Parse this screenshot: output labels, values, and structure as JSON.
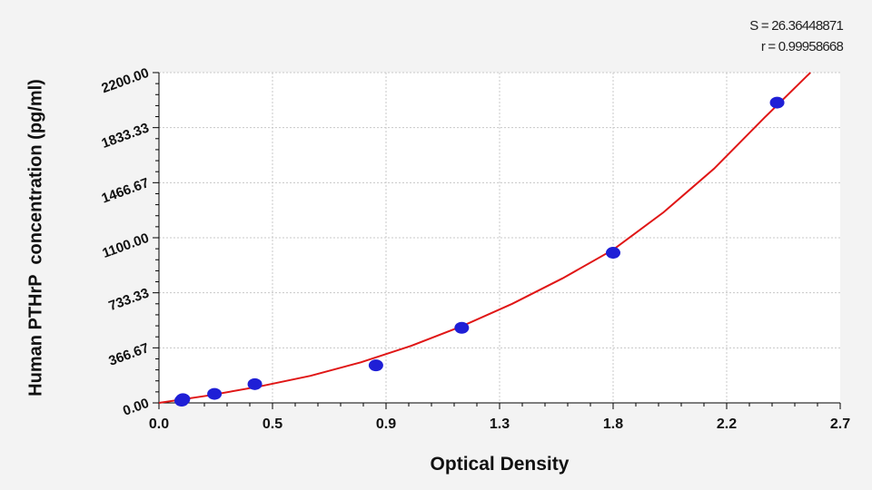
{
  "stats": {
    "s_text": "S = 26.36448871",
    "r_text": "r = 0.99958668"
  },
  "chart_data": {
    "type": "scatter",
    "xlabel": "Optical Density",
    "ylabel": "Human PTHrP  concentration (pg/ml)",
    "xlim": [
      0,
      2.7
    ],
    "ylim": [
      0,
      2200
    ],
    "x_ticks": [
      "0.0",
      "0.5",
      "0.9",
      "1.3",
      "1.8",
      "2.2",
      "2.7"
    ],
    "y_ticks": [
      "0.00",
      "366.67",
      "733.33",
      "1100.00",
      "1466.67",
      "1833.33",
      "2200.00"
    ],
    "grid": true,
    "points": [
      {
        "x": 0.09,
        "y": 15
      },
      {
        "x": 0.095,
        "y": 25
      },
      {
        "x": 0.22,
        "y": 60
      },
      {
        "x": 0.38,
        "y": 125
      },
      {
        "x": 0.86,
        "y": 250
      },
      {
        "x": 1.2,
        "y": 500
      },
      {
        "x": 1.8,
        "y": 1000
      },
      {
        "x": 2.45,
        "y": 2000
      }
    ],
    "fit_curve": {
      "x": [
        0.0,
        0.2,
        0.4,
        0.6,
        0.8,
        1.0,
        1.2,
        1.4,
        1.6,
        1.8,
        2.0,
        2.2,
        2.4,
        2.6
      ],
      "y": [
        0,
        50,
        110,
        180,
        270,
        380,
        510,
        660,
        830,
        1020,
        1270,
        1560,
        1900,
        2230
      ]
    },
    "colors": {
      "points": "#1f1fd6",
      "curve": "#e01616",
      "grid": "#c8c8c8",
      "axis": "#000000",
      "background": "#ffffff"
    }
  }
}
